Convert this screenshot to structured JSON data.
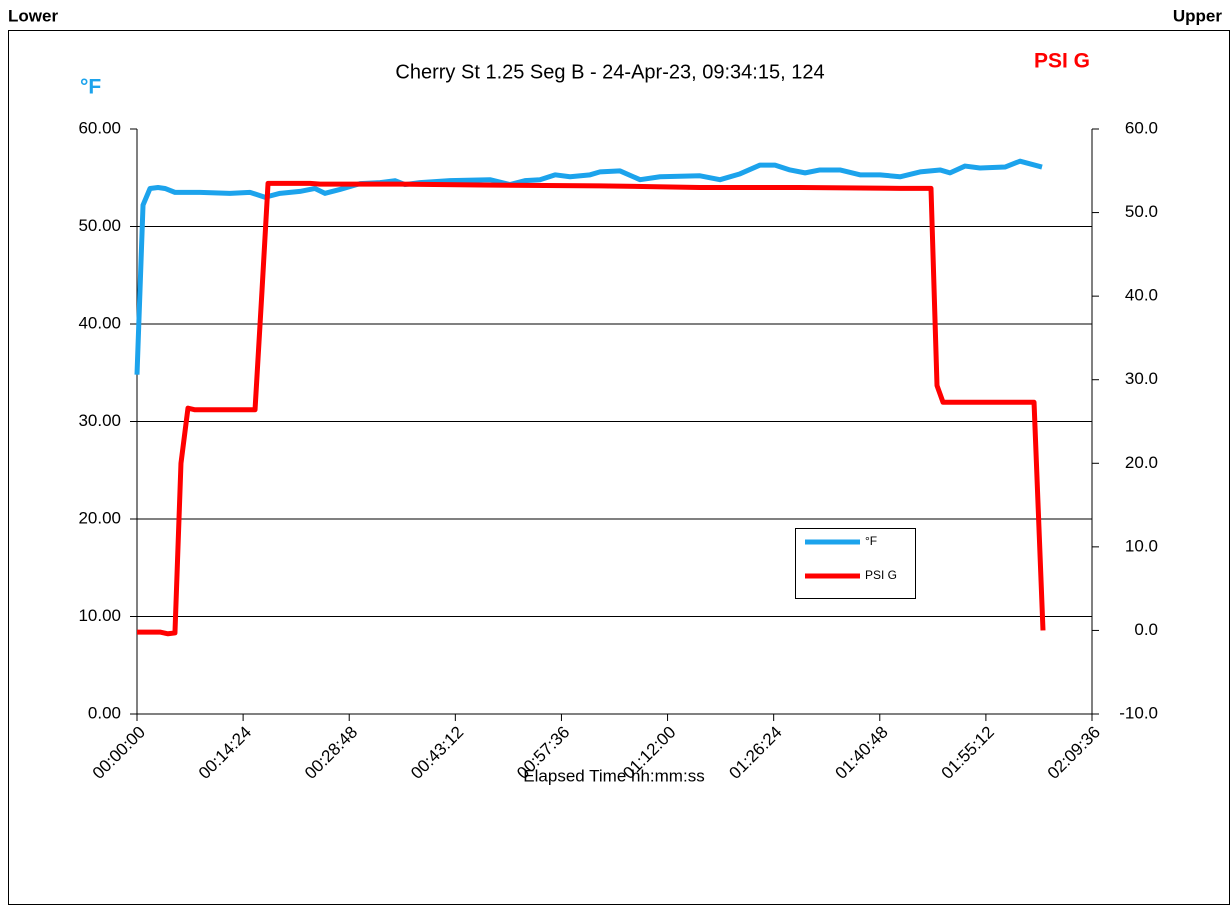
{
  "header": {
    "left": "Lower",
    "right": "Upper"
  },
  "chart_data": {
    "type": "line",
    "title": "Cherry St 1.25 Seg B - 24-Apr-23, 09:34:15, 124",
    "xlabel": "Elapsed Time hh:mm:ss",
    "ylabel": "°F",
    "y2label": "PSI G",
    "grid": true,
    "legend": "center-right",
    "xlim": [
      0,
      7776
    ],
    "xticks": [
      {
        "value": 0,
        "label": "00:00:00"
      },
      {
        "value": 864,
        "label": "00:14:24"
      },
      {
        "value": 1728,
        "label": "00:28:48"
      },
      {
        "value": 2592,
        "label": "00:43:12"
      },
      {
        "value": 3456,
        "label": "00:57:36"
      },
      {
        "value": 4320,
        "label": "01:12:00"
      },
      {
        "value": 5184,
        "label": "01:26:24"
      },
      {
        "value": 6048,
        "label": "01:40:48"
      },
      {
        "value": 6912,
        "label": "01:55:12"
      },
      {
        "value": 7776,
        "label": "02:09:36"
      }
    ],
    "ylim": [
      0,
      60
    ],
    "yticks": [
      {
        "value": 0,
        "label": "0.00"
      },
      {
        "value": 10,
        "label": "10.00"
      },
      {
        "value": 20,
        "label": "20.00"
      },
      {
        "value": 30,
        "label": "30.00"
      },
      {
        "value": 40,
        "label": "40.00"
      },
      {
        "value": 50,
        "label": "50.00"
      },
      {
        "value": 60,
        "label": "60.00"
      }
    ],
    "y2lim": [
      -10,
      60
    ],
    "y2ticks": [
      {
        "value": -10,
        "label": "-10.0"
      },
      {
        "value": 0,
        "label": "0.0"
      },
      {
        "value": 10,
        "label": "10.0"
      },
      {
        "value": 20,
        "label": "20.0"
      },
      {
        "value": 30,
        "label": "30.0"
      },
      {
        "value": 40,
        "label": "40.0"
      },
      {
        "value": 50,
        "label": "50.0"
      },
      {
        "value": 60,
        "label": "60.0"
      }
    ],
    "series": [
      {
        "name": "°F",
        "color": "#1ca3ec",
        "x": [
          0,
          49,
          106,
          171,
          228,
          309,
          513,
          757,
          920,
          1042,
          1164,
          1327,
          1449,
          1531,
          1653,
          1816,
          1979,
          2101,
          2182,
          2304,
          2549,
          2874,
          3037,
          3159,
          3281,
          3404,
          3526,
          3689,
          3770,
          3933,
          4096,
          4259,
          4584,
          4747,
          4910,
          5073,
          5195,
          5317,
          5440,
          5561,
          5724,
          5887,
          6050,
          6213,
          6376,
          6539,
          6620,
          6742,
          6864,
          7068,
          7190,
          7369
        ],
        "values": [
          34.8,
          52.2,
          53.9,
          54.0,
          53.9,
          53.5,
          53.5,
          53.4,
          53.5,
          53.0,
          53.4,
          53.6,
          53.9,
          53.4,
          53.8,
          54.4,
          54.5,
          54.7,
          54.3,
          54.5,
          54.7,
          54.8,
          54.3,
          54.7,
          54.8,
          55.3,
          55.1,
          55.3,
          55.6,
          55.7,
          54.8,
          55.1,
          55.2,
          54.8,
          55.4,
          56.3,
          56.3,
          55.8,
          55.5,
          55.8,
          55.8,
          55.3,
          55.3,
          55.1,
          55.6,
          55.8,
          55.5,
          56.2,
          56.0,
          56.1,
          56.7,
          56.1
        ]
      },
      {
        "name": "PSI G",
        "color": "#ff0000",
        "axis": "y2",
        "x": [
          0,
          187,
          252,
          309,
          358,
          415,
          472,
          961,
          1018,
          1067,
          1409,
          1490,
          2142,
          2793,
          3770,
          4584,
          5399,
          6213,
          6465,
          6514,
          6563,
          7027,
          7304,
          7377
        ],
        "values": [
          -0.2,
          -0.2,
          -0.4,
          -0.3,
          20.0,
          26.6,
          26.4,
          26.4,
          40.7,
          53.5,
          53.5,
          53.4,
          53.4,
          53.3,
          53.2,
          53.0,
          53.0,
          52.9,
          52.9,
          29.3,
          27.3,
          27.3,
          27.3,
          0.0
        ]
      }
    ]
  }
}
